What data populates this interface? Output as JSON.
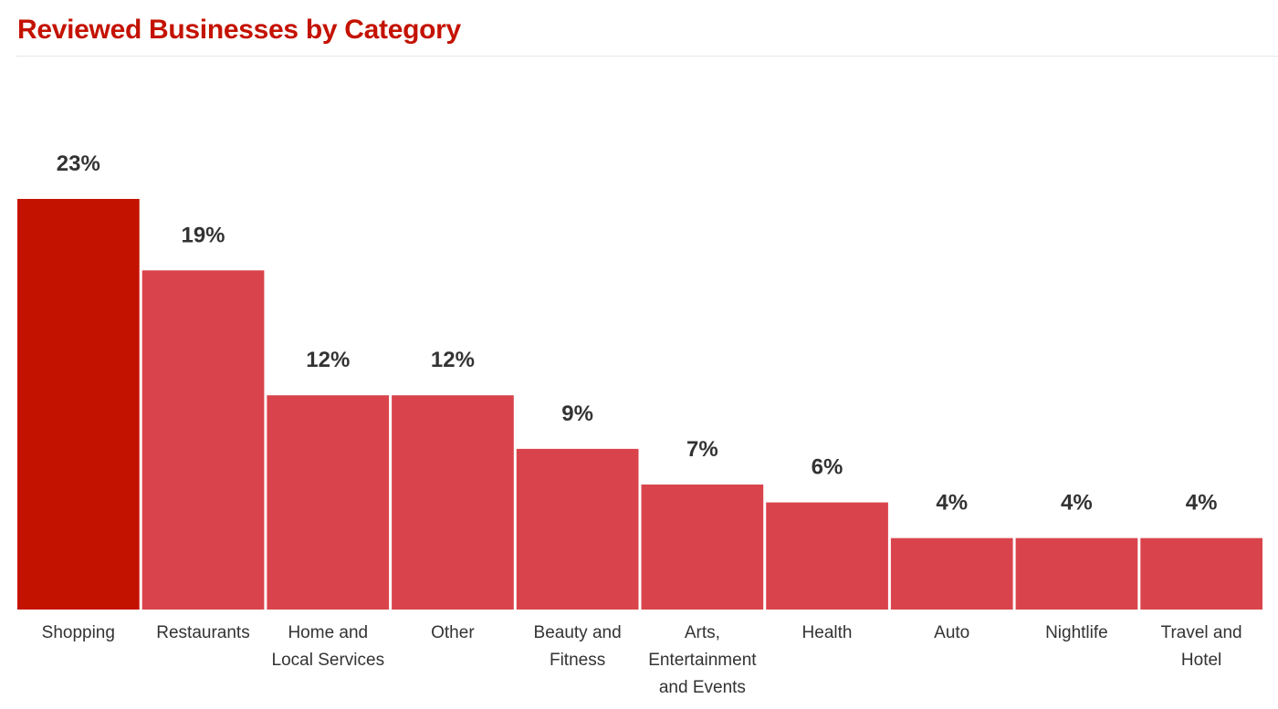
{
  "chart_data": {
    "type": "bar",
    "title": "Reviewed Businesses by Category",
    "xlabel": "",
    "ylabel": "",
    "ylim": [
      0,
      23
    ],
    "grid": false,
    "categories": [
      "Shopping",
      "Restaurants",
      "Home and Local Services",
      "Other",
      "Beauty and Fitness",
      "Arts, Entertainment and Events",
      "Health",
      "Auto",
      "Nightlife",
      "Travel and Hotel"
    ],
    "category_lines": [
      [
        "Shopping"
      ],
      [
        "Restaurants"
      ],
      [
        "Home and",
        "Local Services"
      ],
      [
        "Other"
      ],
      [
        "Beauty and",
        "Fitness"
      ],
      [
        "Arts,",
        "Entertainment",
        "and Events"
      ],
      [
        "Health"
      ],
      [
        "Auto"
      ],
      [
        "Nightlife"
      ],
      [
        "Travel and",
        "Hotel"
      ]
    ],
    "values": [
      23,
      19,
      12,
      12,
      9,
      7,
      6,
      4,
      4,
      4
    ],
    "data_labels": [
      "23%",
      "19%",
      "12%",
      "12%",
      "9%",
      "7%",
      "6%",
      "4%",
      "4%",
      "4%"
    ],
    "highlight_index": 0
  },
  "colors": {
    "title": "#c41200",
    "highlight_bar": "#c41200",
    "bar": "#d9444c",
    "value_label": "#333333",
    "category_label": "#333333"
  }
}
